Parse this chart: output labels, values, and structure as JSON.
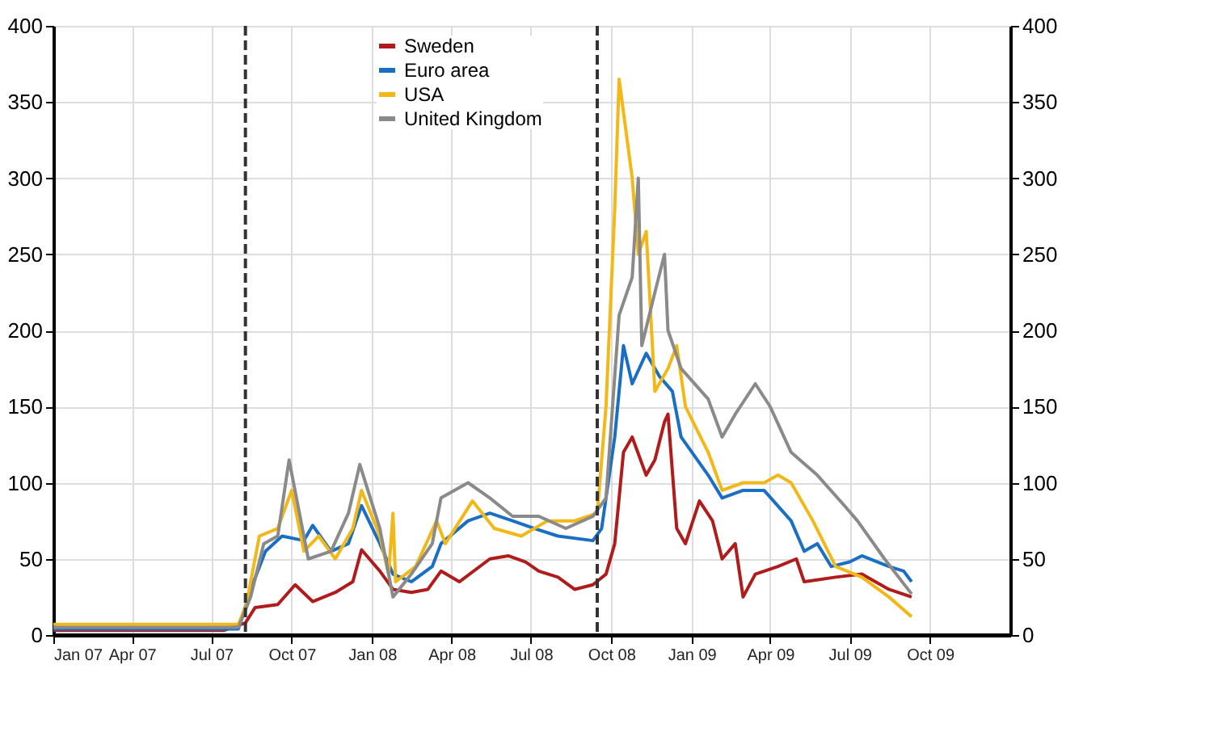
{
  "chart_data": {
    "type": "line",
    "xlim": [
      "2007-01-01",
      "2010-01-01"
    ],
    "xticks": [
      {
        "value": "2007-01-01",
        "label": "Jan 07"
      },
      {
        "value": "2007-04-01",
        "label": "Apr 07"
      },
      {
        "value": "2007-07-01",
        "label": "Jul 07"
      },
      {
        "value": "2007-10-01",
        "label": "Oct 07"
      },
      {
        "value": "2008-01-01",
        "label": "Jan 08"
      },
      {
        "value": "2008-04-01",
        "label": "Apr 08"
      },
      {
        "value": "2008-07-01",
        "label": "Jul 08"
      },
      {
        "value": "2008-10-01",
        "label": "Oct 08"
      },
      {
        "value": "2009-01-01",
        "label": "Jan 09"
      },
      {
        "value": "2009-04-01",
        "label": "Apr 09"
      },
      {
        "value": "2009-07-01",
        "label": "Jul 09"
      },
      {
        "value": "2009-10-01",
        "label": "Oct 09"
      }
    ],
    "ylim": [
      0,
      400
    ],
    "yticks": [
      0,
      50,
      100,
      150,
      200,
      250,
      300,
      350,
      400
    ],
    "y2lim": [
      0,
      400
    ],
    "y2ticks": [
      0,
      50,
      100,
      150,
      200,
      250,
      300,
      350,
      400
    ],
    "grid": true,
    "legend": "top",
    "line_style": "solid",
    "ref_lines": [
      {
        "axis": "x",
        "value": "2007-08-09",
        "color": "#333333",
        "line_style": "dashed"
      },
      {
        "axis": "x",
        "value": "2008-09-15",
        "color": "#333333",
        "line_style": "dashed"
      }
    ],
    "series": [
      {
        "name": "Sweden",
        "color": "#b01c1c",
        "x": [
          "2007-01-01",
          "2007-07-15",
          "2007-08-09",
          "2007-08-20",
          "2007-09-15",
          "2007-10-05",
          "2007-10-25",
          "2007-11-20",
          "2007-12-10",
          "2007-12-20",
          "2008-01-10",
          "2008-01-25",
          "2008-02-15",
          "2008-03-05",
          "2008-03-20",
          "2008-04-10",
          "2008-05-15",
          "2008-06-05",
          "2008-06-25",
          "2008-07-10",
          "2008-08-01",
          "2008-08-20",
          "2008-09-10",
          "2008-09-25",
          "2008-10-05",
          "2008-10-15",
          "2008-10-25",
          "2008-11-10",
          "2008-11-20",
          "2008-12-01",
          "2008-12-05",
          "2008-12-15",
          "2008-12-25",
          "2009-01-10",
          "2009-01-25",
          "2009-02-05",
          "2009-02-20",
          "2009-03-01",
          "2009-03-15",
          "2009-04-10",
          "2009-05-01",
          "2009-05-10",
          "2009-06-15",
          "2009-07-15",
          "2009-08-15",
          "2009-09-10"
        ],
        "values": [
          3,
          3,
          8,
          18,
          20,
          33,
          22,
          28,
          35,
          56,
          42,
          30,
          28,
          30,
          42,
          35,
          50,
          52,
          48,
          42,
          38,
          30,
          33,
          40,
          60,
          120,
          130,
          105,
          115,
          140,
          145,
          70,
          60,
          88,
          75,
          50,
          60,
          25,
          40,
          45,
          50,
          35,
          38,
          40,
          30,
          25
        ]
      },
      {
        "name": "Euro area",
        "color": "#1a6fc4",
        "x": [
          "2007-01-01",
          "2007-08-01",
          "2007-08-15",
          "2007-09-01",
          "2007-09-20",
          "2007-10-15",
          "2007-10-25",
          "2007-11-15",
          "2007-12-05",
          "2007-12-20",
          "2008-01-10",
          "2008-01-25",
          "2008-02-15",
          "2008-03-10",
          "2008-03-20",
          "2008-04-20",
          "2008-05-15",
          "2008-06-10",
          "2008-07-05",
          "2008-08-01",
          "2008-09-10",
          "2008-09-20",
          "2008-10-05",
          "2008-10-15",
          "2008-10-25",
          "2008-11-10",
          "2008-11-25",
          "2008-12-10",
          "2008-12-20",
          "2009-01-20",
          "2009-02-05",
          "2009-03-01",
          "2009-03-25",
          "2009-04-25",
          "2009-05-10",
          "2009-05-25",
          "2009-06-10",
          "2009-07-01",
          "2009-07-15",
          "2009-08-15",
          "2009-09-01",
          "2009-09-10"
        ],
        "values": [
          4,
          4,
          30,
          55,
          65,
          62,
          72,
          55,
          60,
          85,
          60,
          40,
          35,
          45,
          60,
          75,
          80,
          75,
          70,
          65,
          62,
          70,
          130,
          190,
          165,
          185,
          170,
          160,
          130,
          105,
          90,
          95,
          95,
          75,
          55,
          60,
          45,
          48,
          52,
          45,
          42,
          35
        ]
      },
      {
        "name": "USA",
        "color": "#f2b818",
        "x": [
          "2007-01-01",
          "2007-08-01",
          "2007-08-10",
          "2007-08-25",
          "2007-09-15",
          "2007-10-01",
          "2007-10-15",
          "2007-11-01",
          "2007-11-20",
          "2007-12-10",
          "2007-12-20",
          "2008-01-10",
          "2008-01-20",
          "2008-01-25",
          "2008-01-28",
          "2008-02-20",
          "2008-03-15",
          "2008-03-25",
          "2008-04-25",
          "2008-05-20",
          "2008-06-20",
          "2008-07-20",
          "2008-08-20",
          "2008-09-15",
          "2008-09-25",
          "2008-10-05",
          "2008-10-10",
          "2008-10-25",
          "2008-11-01",
          "2008-11-10",
          "2008-11-20",
          "2008-12-05",
          "2008-12-15",
          "2008-12-25",
          "2009-01-20",
          "2009-02-05",
          "2009-03-01",
          "2009-03-25",
          "2009-04-10",
          "2009-04-25",
          "2009-05-20",
          "2009-06-15",
          "2009-07-15",
          "2009-08-15",
          "2009-09-10"
        ],
        "values": [
          7,
          7,
          20,
          65,
          70,
          95,
          55,
          65,
          50,
          70,
          95,
          65,
          40,
          80,
          35,
          45,
          75,
          60,
          88,
          70,
          65,
          75,
          75,
          80,
          150,
          280,
          365,
          300,
          250,
          265,
          160,
          175,
          190,
          150,
          120,
          95,
          100,
          100,
          105,
          100,
          75,
          45,
          38,
          25,
          12
        ]
      },
      {
        "name": "United Kingdom",
        "color": "#8a8a8a",
        "x": [
          "2007-01-01",
          "2007-08-01",
          "2007-08-15",
          "2007-08-30",
          "2007-09-15",
          "2007-09-28",
          "2007-10-20",
          "2007-11-15",
          "2007-12-05",
          "2007-12-18",
          "2008-01-10",
          "2008-01-25",
          "2008-02-15",
          "2008-03-10",
          "2008-03-20",
          "2008-04-20",
          "2008-05-15",
          "2008-06-10",
          "2008-07-10",
          "2008-08-10",
          "2008-09-10",
          "2008-09-25",
          "2008-10-10",
          "2008-10-25",
          "2008-11-01",
          "2008-11-05",
          "2008-11-20",
          "2008-12-01",
          "2008-12-05",
          "2008-12-20",
          "2009-01-20",
          "2009-02-05",
          "2009-02-20",
          "2009-03-15",
          "2009-04-01",
          "2009-04-25",
          "2009-05-25",
          "2009-06-25",
          "2009-07-10",
          "2009-08-10",
          "2009-09-10"
        ],
        "values": [
          5,
          5,
          25,
          60,
          65,
          115,
          50,
          55,
          80,
          112,
          70,
          25,
          40,
          60,
          90,
          100,
          90,
          78,
          78,
          70,
          78,
          90,
          210,
          235,
          300,
          190,
          225,
          250,
          200,
          175,
          155,
          130,
          145,
          165,
          150,
          120,
          105,
          85,
          75,
          50,
          27
        ]
      }
    ]
  }
}
